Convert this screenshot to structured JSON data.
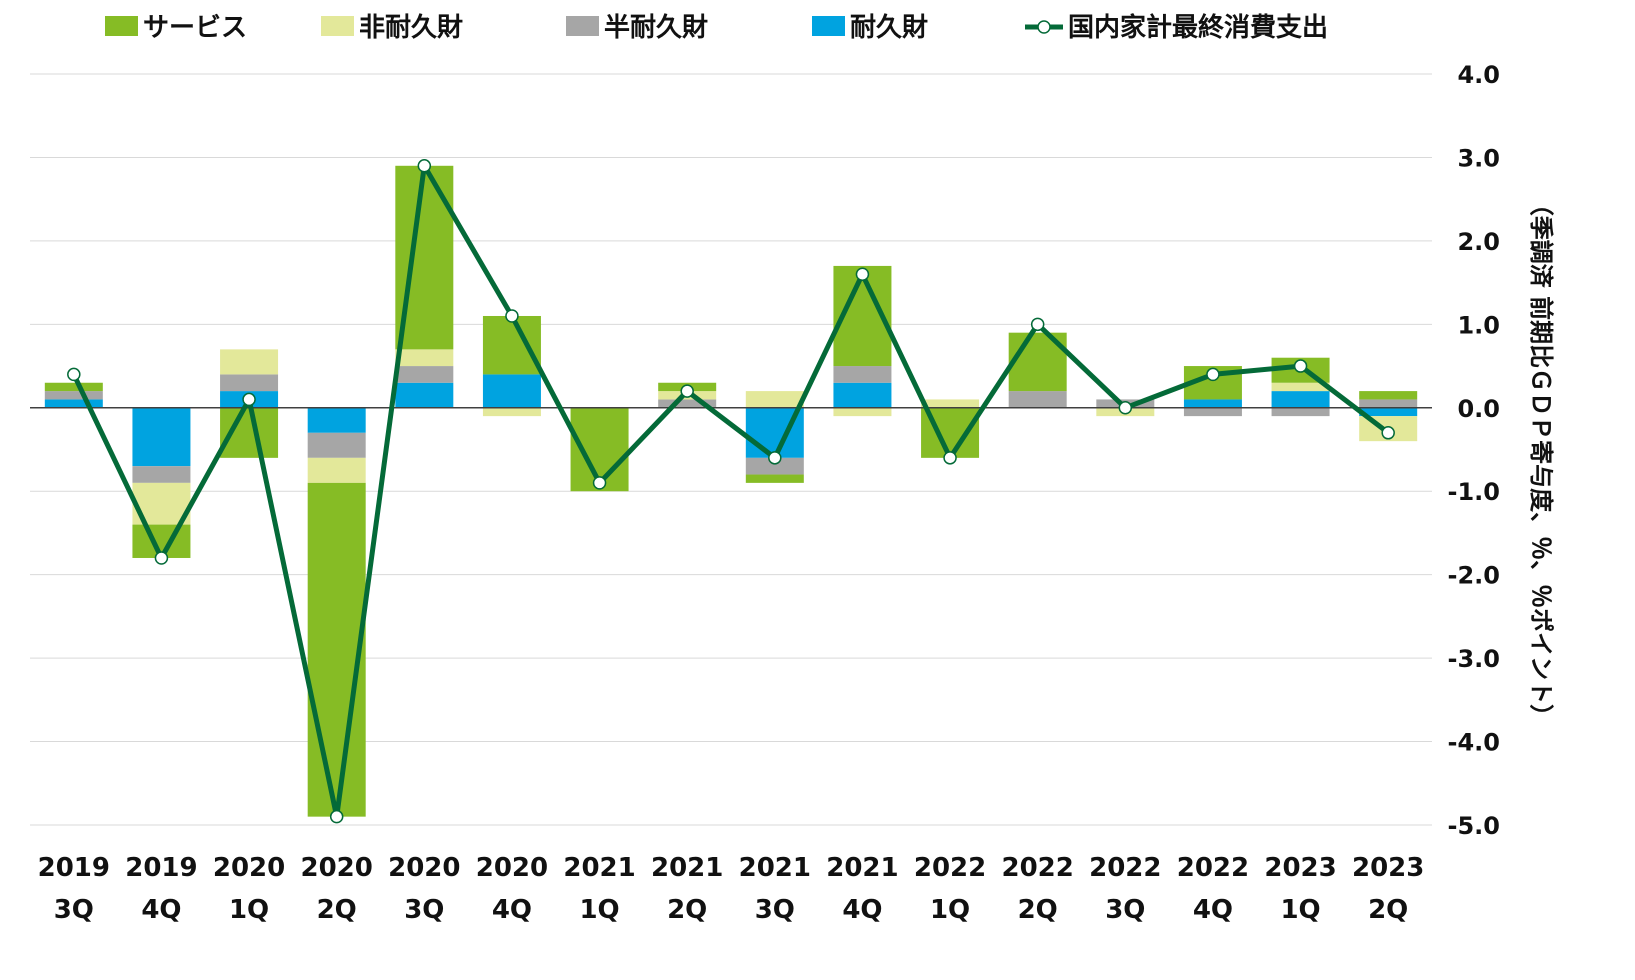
{
  "chart_data": {
    "type": "bar",
    "stacked": true,
    "categories": [
      [
        "2019",
        "3Q"
      ],
      [
        "2019",
        "4Q"
      ],
      [
        "2020",
        "1Q"
      ],
      [
        "2020",
        "2Q"
      ],
      [
        "2020",
        "3Q"
      ],
      [
        "2020",
        "4Q"
      ],
      [
        "2021",
        "1Q"
      ],
      [
        "2021",
        "2Q"
      ],
      [
        "2021",
        "3Q"
      ],
      [
        "2021",
        "4Q"
      ],
      [
        "2022",
        "1Q"
      ],
      [
        "2022",
        "2Q"
      ],
      [
        "2022",
        "3Q"
      ],
      [
        "2022",
        "4Q"
      ],
      [
        "2023",
        "1Q"
      ],
      [
        "2023",
        "2Q"
      ]
    ],
    "series": [
      {
        "name": "耐久財",
        "type": "bar",
        "color": "#00a3e0",
        "values": [
          0.1,
          -0.7,
          0.2,
          -0.3,
          0.3,
          0.4,
          0.0,
          0.0,
          -0.6,
          0.3,
          0.0,
          0.0,
          0.0,
          0.1,
          0.2,
          -0.1
        ]
      },
      {
        "name": "半耐久財",
        "type": "bar",
        "color": "#a6a6a6",
        "values": [
          0.1,
          -0.2,
          0.2,
          -0.3,
          0.2,
          0.0,
          0.0,
          0.1,
          -0.2,
          0.2,
          0.0,
          0.2,
          0.1,
          -0.1,
          -0.1,
          0.1
        ]
      },
      {
        "name": "非耐久財",
        "type": "bar",
        "color": "#e3e89a",
        "values": [
          0.0,
          -0.5,
          0.3,
          -0.3,
          0.2,
          -0.1,
          0.0,
          0.1,
          0.2,
          -0.1,
          0.1,
          0.0,
          -0.1,
          0.0,
          0.1,
          -0.3
        ]
      },
      {
        "name": "サービス",
        "type": "bar",
        "color": "#86bc25",
        "values": [
          0.1,
          -0.4,
          -0.6,
          -4.0,
          2.2,
          0.7,
          -1.0,
          0.1,
          -0.1,
          1.2,
          -0.6,
          0.7,
          0.0,
          0.4,
          0.3,
          0.1
        ]
      },
      {
        "name": "国内家計最終消費支出",
        "type": "line",
        "color": "#046a38",
        "values": [
          0.4,
          -1.8,
          0.1,
          -4.9,
          2.9,
          1.1,
          -0.9,
          0.2,
          -0.6,
          1.6,
          -0.6,
          1.0,
          0.0,
          0.4,
          0.5,
          -0.3
        ]
      }
    ],
    "legend_order": [
      "サービス",
      "非耐久財",
      "半耐久財",
      "耐久財",
      "国内家計最終消費支出"
    ],
    "legend_position": "top",
    "ylim": [
      -5.0,
      4.0
    ],
    "yticks": [
      "4.0",
      "3.0",
      "2.0",
      "1.0",
      "0.0",
      "-1.0",
      "-2.0",
      "-3.0",
      "-4.0",
      "-5.0"
    ],
    "yaxis_side": "right",
    "ylabel": "（季調済 前期比ＧＤＰ寄与度、％、％ポイント）",
    "title": "",
    "xlabel": "",
    "grid": true
  }
}
